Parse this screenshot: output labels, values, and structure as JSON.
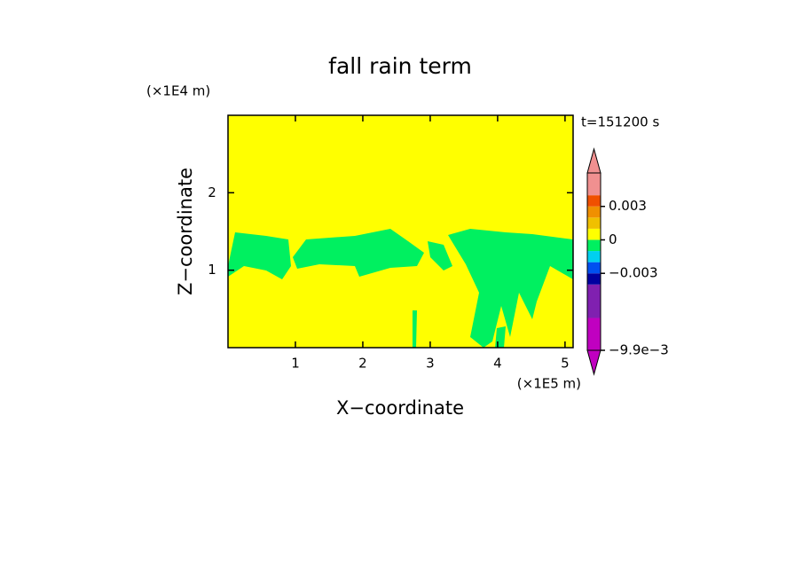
{
  "chart_data": {
    "type": "contour",
    "title": "fall rain term",
    "x_label": "X−coordinate",
    "y_label": "Z−coordinate",
    "x_unit": "(×1E5 m)",
    "y_unit": "(×1E4 m)",
    "annotation": "t=151200 s",
    "xlim": [
      0,
      5.12
    ],
    "xticks": [
      1,
      2,
      3,
      4,
      5
    ],
    "ylim": [
      0,
      3
    ],
    "yticks": [
      1,
      2
    ],
    "colorbar": {
      "levels": [
        -0.0099,
        -0.007,
        -0.004,
        -0.003,
        -0.002,
        -0.001,
        0,
        0.001,
        0.002,
        0.003,
        0.004,
        0.006
      ],
      "colors": [
        "#c000c0",
        "#8020b0",
        "#0000a0",
        "#0050f0",
        "#00d0f0",
        "#00f060",
        "#ffff00",
        "#f0c000",
        "#f09000",
        "#f05000",
        "#f09090"
      ],
      "ticks": [
        {
          "value": 0.003,
          "label": "0.003"
        },
        0,
        {
          "value": -0.003,
          "label": "−0.003"
        },
        {
          "value": -0.0099,
          "label": "−9.9e−3"
        }
      ]
    }
  }
}
